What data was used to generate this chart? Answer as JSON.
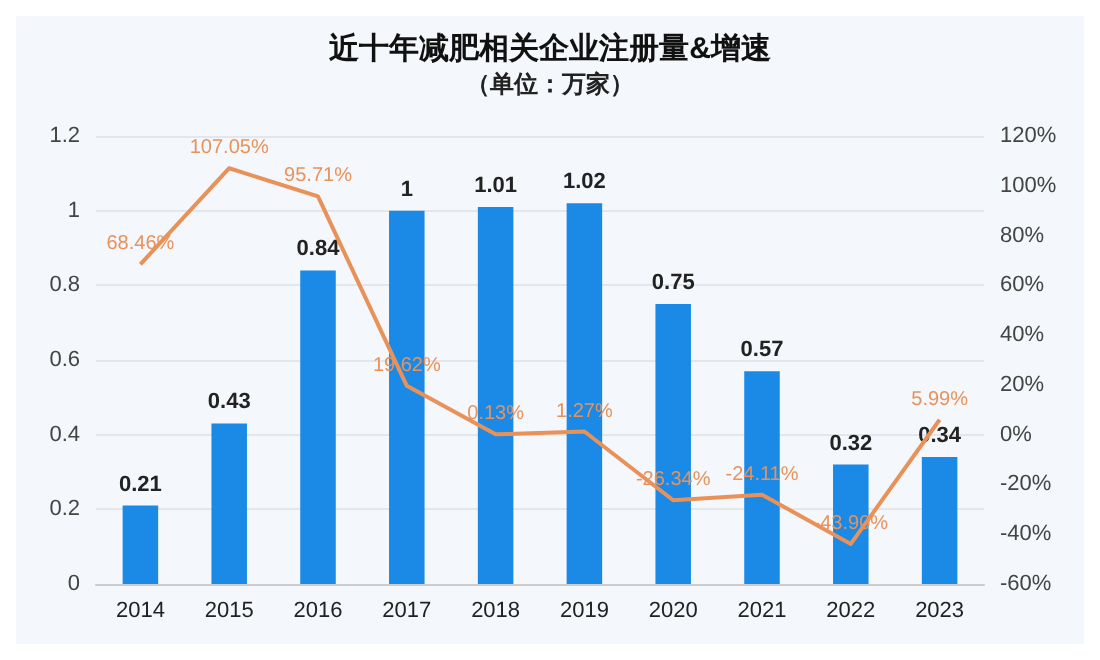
{
  "chart_data": {
    "type": "bar",
    "title": "近十年减肥相关企业注册量&增速",
    "subtitle": "（单位：万家）",
    "categories": [
      "2014",
      "2015",
      "2016",
      "2017",
      "2018",
      "2019",
      "2020",
      "2021",
      "2022",
      "2023"
    ],
    "series": [
      {
        "color": "#1a8ae6",
        "values": [
          0.21,
          0.43,
          0.84,
          1,
          1.01,
          1.02,
          0.75,
          0.57,
          0.32,
          0.34
        ],
        "data_labels": true
      },
      {
        "type": "line",
        "axis": "y2",
        "color": "#e8925a",
        "values": [
          68.46,
          107.05,
          95.71,
          19.62,
          0.13,
          1.27,
          -26.34,
          -24.11,
          -43.9,
          5.99
        ],
        "value_labels": [
          "68.46%",
          "107.05%",
          "95.71%",
          "19.62%",
          "0.13%",
          "1.27%",
          "-26.34%",
          "-24.11%",
          "-43.90%",
          "5.99%"
        ]
      }
    ],
    "ylim": [
      0,
      1.2
    ],
    "yticks": [
      0,
      0.2,
      0.4,
      0.6,
      0.8,
      1,
      1.2
    ],
    "y2lim": [
      -60,
      120
    ],
    "y2ticks": [
      {
        "value": -60,
        "label": "-60%"
      },
      {
        "value": -40,
        "label": "-40%"
      },
      {
        "value": -20,
        "label": "-20%"
      },
      {
        "value": 0,
        "label": "0%"
      },
      {
        "value": 20,
        "label": "20%"
      },
      {
        "value": 40,
        "label": "40%"
      },
      {
        "value": 60,
        "label": "60%"
      },
      {
        "value": 80,
        "label": "80%"
      },
      {
        "value": 100,
        "label": "100%"
      },
      {
        "value": 120,
        "label": "120%"
      }
    ],
    "grid": "y",
    "marker": "none",
    "line_style": "solid"
  }
}
